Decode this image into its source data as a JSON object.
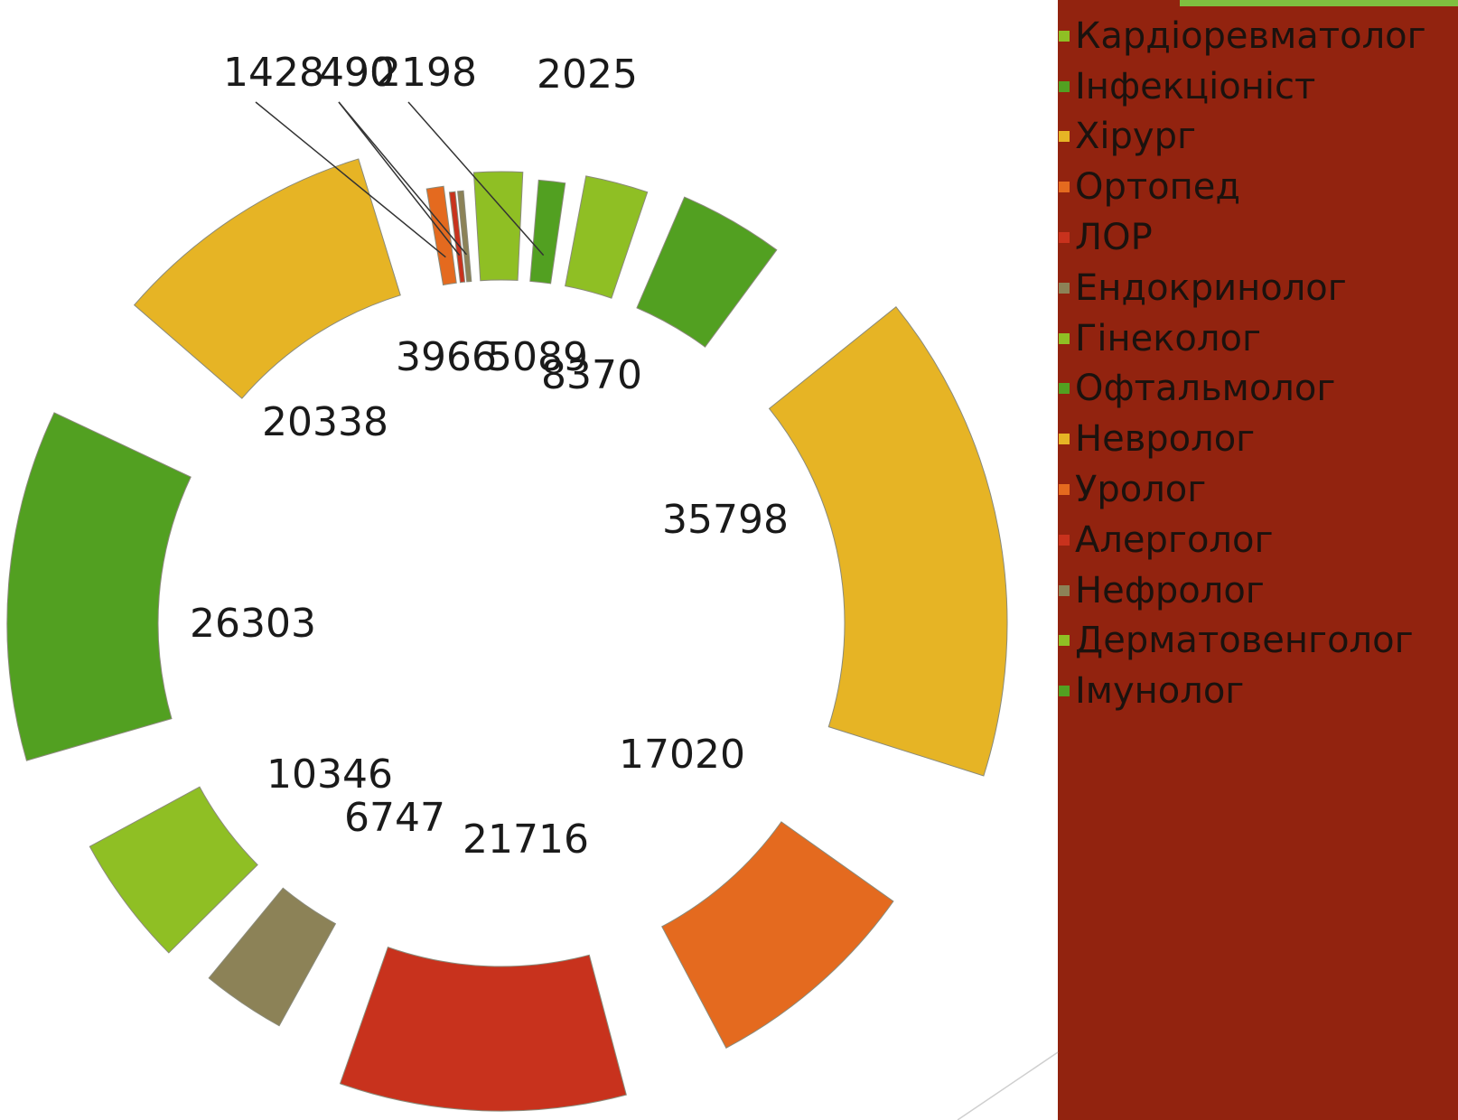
{
  "chart_data": {
    "type": "pie",
    "style": "exploded-radial",
    "categories": [
      "Кардіоревматолог",
      "Інфекціоніст",
      "Хірург",
      "Ортопед",
      "ЛОР",
      "Ендокринолог",
      "Гінеколог",
      "Офтальмолог",
      "Невролог",
      "Уролог",
      "Алерголог",
      "Нефролог",
      "Дерматовенголог",
      "Імунолог"
    ],
    "values": [
      5089,
      8370,
      35798,
      17020,
      21716,
      6747,
      10346,
      26303,
      20338,
      1428,
      490,
      490,
      3966,
      2198
    ],
    "data_labels": [
      "5089",
      "8370",
      "35798",
      "17020",
      "21716",
      "6747",
      "10346",
      "26303",
      "20338",
      "1428",
      "490",
      "490",
      "3966",
      "2198"
    ],
    "extra_labels": [
      "2025"
    ],
    "colors": [
      "#8fbf24",
      "#52a021",
      "#e6b425",
      "#e46a1f",
      "#c8321d",
      "#8c8257",
      "#8fbf24",
      "#52a021",
      "#e6b425",
      "#e46a1f",
      "#c8321d",
      "#8c8257",
      "#8fbf24",
      "#52a021"
    ],
    "legend": {
      "position": "right",
      "entries": [
        "Кардіоревматолог",
        "Інфекціоніст",
        "Хірург",
        "Ортопед",
        "ЛОР",
        "Ендокринолог",
        "Гінеколог",
        "Офтальмолог",
        "Невролог",
        "Уролог",
        "Алерголог",
        "Нефролог",
        "Дерматовенголог",
        "Імунолог"
      ],
      "background": "#92230f"
    },
    "title": "",
    "xlabel": "",
    "ylabel": ""
  }
}
